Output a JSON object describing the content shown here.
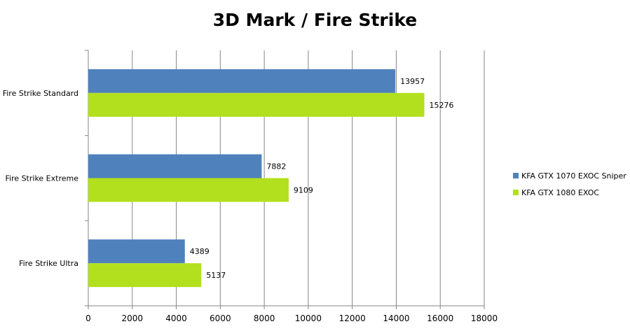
{
  "chart_data": {
    "type": "bar",
    "orientation": "horizontal",
    "title": "3D Mark / Fire Strike",
    "categories": [
      "Fire Strike Standard",
      "Fire Strike Extreme",
      "Fire Strike Ultra"
    ],
    "series": [
      {
        "name": "KFA GTX 1070 EXOC Sniper",
        "color": "#4f81bd",
        "values": [
          13957,
          7882,
          4389
        ]
      },
      {
        "name": "KFA GTX 1080 EXOC",
        "color": "#b2e01e",
        "values": [
          15276,
          9109,
          5137
        ]
      }
    ],
    "xlim": [
      0,
      18000
    ],
    "xticks": [
      "0",
      "2000",
      "4000",
      "6000",
      "8000",
      "10000",
      "12000",
      "14000",
      "16000",
      "18000"
    ],
    "grid": true,
    "legend_position": "right"
  }
}
